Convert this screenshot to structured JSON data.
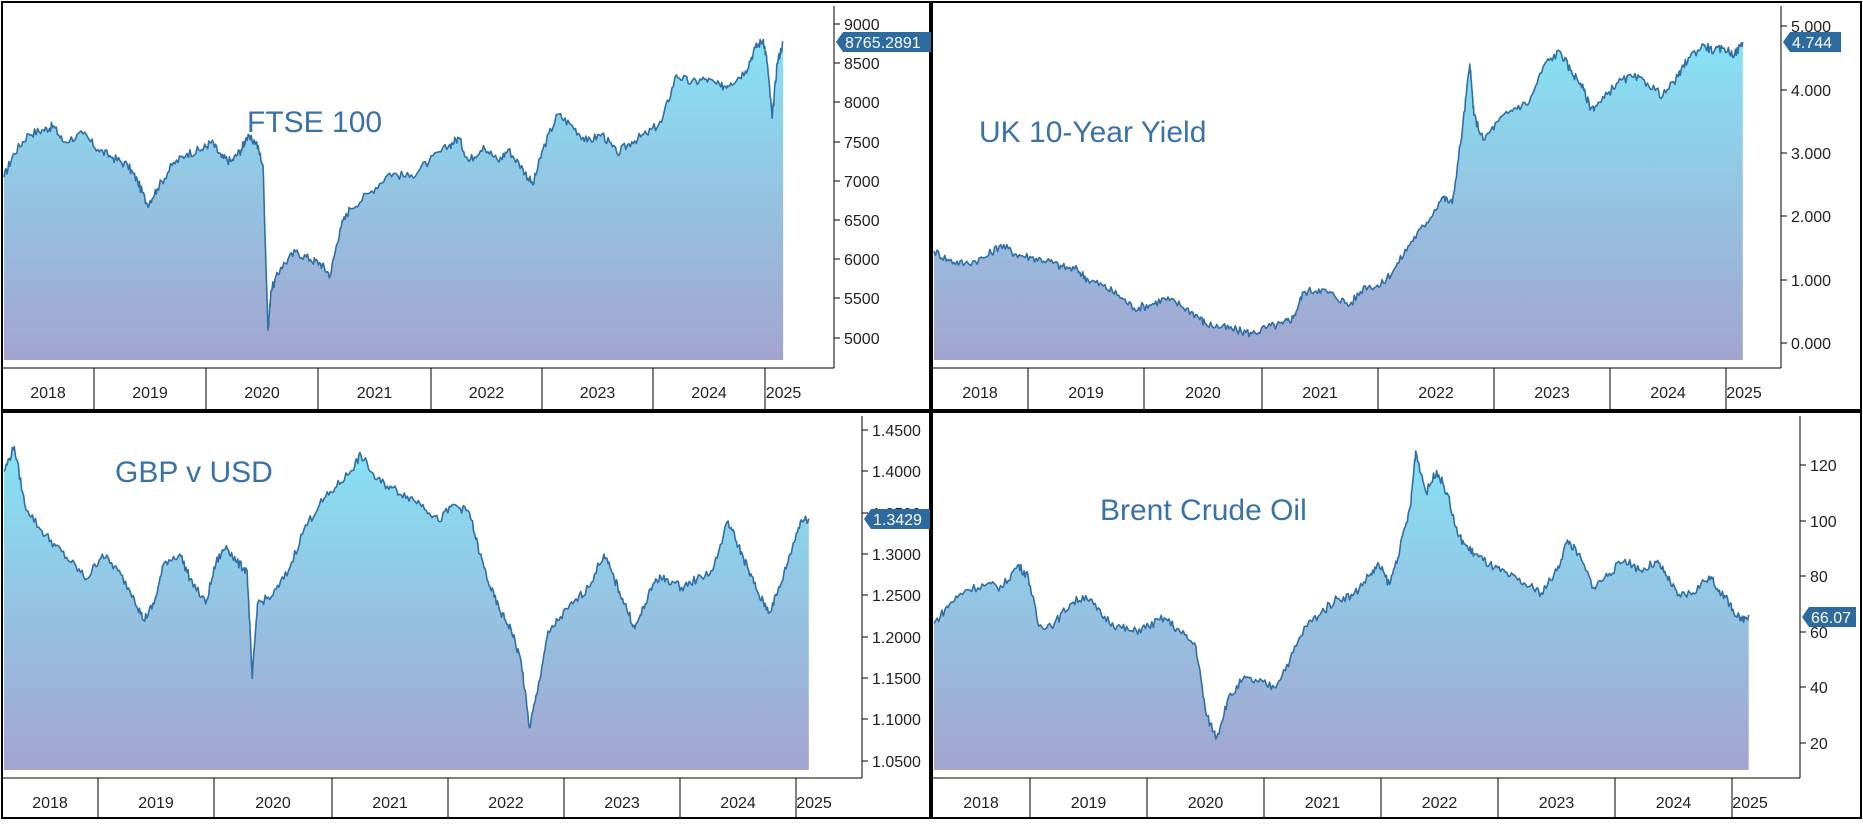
{
  "colors": {
    "line": "#2f6fa6",
    "title": "#3a72a8",
    "fill_top": "#86e2f4",
    "fill_bottom": "#a3a4cf",
    "border": "#000000",
    "badge": "#2c6aa0"
  },
  "chart_data": [
    {
      "type": "area",
      "title": "FTSE 100",
      "x_tick_labels": [
        "2018",
        "2019",
        "2020",
        "2021",
        "2022",
        "2023",
        "2024",
        "2025"
      ],
      "y_tick_labels": [
        "9000",
        "8500",
        "8000",
        "7500",
        "7000",
        "6500",
        "6000",
        "5500",
        "5000"
      ],
      "ylim": [
        4620,
        9220
      ],
      "last_value_label": "8765.2891",
      "series": [
        {
          "values": [
            [
              2017.5,
              7050
            ],
            [
              2017.6,
              7350
            ],
            [
              2017.75,
              7600
            ],
            [
              2017.9,
              7650
            ],
            [
              2018.0,
              7700
            ],
            [
              2018.1,
              7500
            ],
            [
              2018.3,
              7600
            ],
            [
              2018.45,
              7400
            ],
            [
              2018.6,
              7300
            ],
            [
              2018.75,
              7200
            ],
            [
              2018.85,
              7000
            ],
            [
              2018.95,
              6700
            ],
            [
              2019.05,
              6900
            ],
            [
              2019.2,
              7200
            ],
            [
              2019.35,
              7350
            ],
            [
              2019.5,
              7400
            ],
            [
              2019.6,
              7500
            ],
            [
              2019.7,
              7300
            ],
            [
              2019.8,
              7250
            ],
            [
              2019.9,
              7400
            ],
            [
              2019.95,
              7550
            ],
            [
              2020.05,
              7500
            ],
            [
              2020.12,
              7200
            ],
            [
              2020.17,
              5100
            ],
            [
              2020.2,
              5600
            ],
            [
              2020.3,
              5900
            ],
            [
              2020.45,
              6100
            ],
            [
              2020.6,
              6000
            ],
            [
              2020.7,
              5950
            ],
            [
              2020.8,
              5800
            ],
            [
              2020.9,
              6400
            ],
            [
              2021.0,
              6650
            ],
            [
              2021.2,
              6850
            ],
            [
              2021.4,
              7100
            ],
            [
              2021.6,
              7050
            ],
            [
              2021.8,
              7250
            ],
            [
              2022.0,
              7450
            ],
            [
              2022.1,
              7550
            ],
            [
              2022.2,
              7250
            ],
            [
              2022.35,
              7450
            ],
            [
              2022.5,
              7250
            ],
            [
              2022.6,
              7400
            ],
            [
              2022.75,
              7150
            ],
            [
              2022.85,
              6950
            ],
            [
              2022.95,
              7400
            ],
            [
              2023.1,
              7850
            ],
            [
              2023.25,
              7700
            ],
            [
              2023.4,
              7500
            ],
            [
              2023.55,
              7600
            ],
            [
              2023.7,
              7350
            ],
            [
              2023.85,
              7500
            ],
            [
              2024.0,
              7600
            ],
            [
              2024.15,
              7750
            ],
            [
              2024.3,
              8350
            ],
            [
              2024.45,
              8250
            ],
            [
              2024.6,
              8300
            ],
            [
              2024.75,
              8200
            ],
            [
              2024.85,
              8250
            ],
            [
              2025.0,
              8400
            ],
            [
              2025.1,
              8700
            ],
            [
              2025.18,
              8800
            ],
            [
              2025.22,
              8500
            ],
            [
              2025.27,
              7800
            ],
            [
              2025.32,
              8500
            ],
            [
              2025.38,
              8765
            ]
          ]
        }
      ]
    },
    {
      "type": "area",
      "title": "UK 10-Year Yield",
      "x_tick_labels": [
        "2018",
        "2019",
        "2020",
        "2021",
        "2022",
        "2023",
        "2024",
        "2025"
      ],
      "y_tick_labels": [
        "5.000",
        "4.000",
        "3.000",
        "2.000",
        "1.000",
        "0.000"
      ],
      "ylim": [
        -0.45,
        5.05
      ],
      "last_value_label": "4.744",
      "series": [
        {
          "values": [
            [
              2017.5,
              1.45
            ],
            [
              2017.65,
              1.3
            ],
            [
              2017.8,
              1.25
            ],
            [
              2018.0,
              1.35
            ],
            [
              2018.15,
              1.55
            ],
            [
              2018.3,
              1.4
            ],
            [
              2018.45,
              1.35
            ],
            [
              2018.6,
              1.3
            ],
            [
              2018.75,
              1.2
            ],
            [
              2018.9,
              1.15
            ],
            [
              2019.0,
              1.0
            ],
            [
              2019.15,
              0.9
            ],
            [
              2019.3,
              0.75
            ],
            [
              2019.45,
              0.55
            ],
            [
              2019.6,
              0.6
            ],
            [
              2019.75,
              0.7
            ],
            [
              2019.9,
              0.6
            ],
            [
              2020.05,
              0.45
            ],
            [
              2020.15,
              0.3
            ],
            [
              2020.3,
              0.25
            ],
            [
              2020.45,
              0.2
            ],
            [
              2020.6,
              0.15
            ],
            [
              2020.75,
              0.25
            ],
            [
              2020.9,
              0.3
            ],
            [
              2021.0,
              0.4
            ],
            [
              2021.1,
              0.8
            ],
            [
              2021.25,
              0.85
            ],
            [
              2021.4,
              0.75
            ],
            [
              2021.55,
              0.6
            ],
            [
              2021.7,
              0.9
            ],
            [
              2021.85,
              0.9
            ],
            [
              2022.0,
              1.2
            ],
            [
              2022.15,
              1.6
            ],
            [
              2022.3,
              1.9
            ],
            [
              2022.45,
              2.3
            ],
            [
              2022.55,
              2.2
            ],
            [
              2022.65,
              3.4
            ],
            [
              2022.72,
              4.4
            ],
            [
              2022.76,
              3.6
            ],
            [
              2022.85,
              3.2
            ],
            [
              2023.0,
              3.5
            ],
            [
              2023.15,
              3.7
            ],
            [
              2023.3,
              3.8
            ],
            [
              2023.45,
              4.4
            ],
            [
              2023.6,
              4.6
            ],
            [
              2023.7,
              4.3
            ],
            [
              2023.8,
              4.1
            ],
            [
              2023.9,
              3.7
            ],
            [
              2024.0,
              3.8
            ],
            [
              2024.15,
              4.1
            ],
            [
              2024.3,
              4.2
            ],
            [
              2024.45,
              4.1
            ],
            [
              2024.6,
              3.9
            ],
            [
              2024.75,
              4.2
            ],
            [
              2024.85,
              4.5
            ],
            [
              2025.0,
              4.7
            ],
            [
              2025.1,
              4.6
            ],
            [
              2025.2,
              4.65
            ],
            [
              2025.3,
              4.55
            ],
            [
              2025.38,
              4.744
            ]
          ]
        }
      ]
    },
    {
      "type": "area",
      "title": "GBP v USD",
      "x_tick_labels": [
        "2018",
        "2019",
        "2020",
        "2021",
        "2022",
        "2023",
        "2024",
        "2025"
      ],
      "y_tick_labels": [
        "1.4500",
        "1.4000",
        "1.3500",
        "1.3000",
        "1.2500",
        "1.2000",
        "1.1500",
        "1.1000",
        "1.0500"
      ],
      "ylim": [
        1.035,
        1.465
      ],
      "last_value_label": "1.3429",
      "series": [
        {
          "values": [
            [
              2017.6,
              1.4
            ],
            [
              2017.7,
              1.43
            ],
            [
              2017.8,
              1.36
            ],
            [
              2017.95,
              1.33
            ],
            [
              2018.1,
              1.31
            ],
            [
              2018.25,
              1.29
            ],
            [
              2018.4,
              1.27
            ],
            [
              2018.55,
              1.3
            ],
            [
              2018.7,
              1.28
            ],
            [
              2018.85,
              1.25
            ],
            [
              2018.95,
              1.22
            ],
            [
              2019.05,
              1.24
            ],
            [
              2019.15,
              1.29
            ],
            [
              2019.3,
              1.3
            ],
            [
              2019.4,
              1.27
            ],
            [
              2019.55,
              1.24
            ],
            [
              2019.65,
              1.29
            ],
            [
              2019.75,
              1.31
            ],
            [
              2019.85,
              1.29
            ],
            [
              2019.95,
              1.28
            ],
            [
              2020.0,
              1.15
            ],
            [
              2020.05,
              1.24
            ],
            [
              2020.2,
              1.25
            ],
            [
              2020.35,
              1.28
            ],
            [
              2020.5,
              1.33
            ],
            [
              2020.65,
              1.36
            ],
            [
              2020.8,
              1.38
            ],
            [
              2020.95,
              1.4
            ],
            [
              2021.05,
              1.42
            ],
            [
              2021.2,
              1.39
            ],
            [
              2021.35,
              1.38
            ],
            [
              2021.5,
              1.37
            ],
            [
              2021.65,
              1.36
            ],
            [
              2021.8,
              1.34
            ],
            [
              2021.95,
              1.36
            ],
            [
              2022.1,
              1.35
            ],
            [
              2022.2,
              1.3
            ],
            [
              2022.3,
              1.26
            ],
            [
              2022.4,
              1.23
            ],
            [
              2022.5,
              1.21
            ],
            [
              2022.6,
              1.17
            ],
            [
              2022.68,
              1.09
            ],
            [
              2022.75,
              1.13
            ],
            [
              2022.85,
              1.2
            ],
            [
              2022.95,
              1.22
            ],
            [
              2023.1,
              1.24
            ],
            [
              2023.25,
              1.26
            ],
            [
              2023.4,
              1.3
            ],
            [
              2023.5,
              1.27
            ],
            [
              2023.6,
              1.24
            ],
            [
              2023.7,
              1.21
            ],
            [
              2023.8,
              1.24
            ],
            [
              2023.9,
              1.27
            ],
            [
              2024.0,
              1.27
            ],
            [
              2024.15,
              1.26
            ],
            [
              2024.3,
              1.27
            ],
            [
              2024.45,
              1.28
            ],
            [
              2024.6,
              1.34
            ],
            [
              2024.7,
              1.31
            ],
            [
              2024.8,
              1.28
            ],
            [
              2024.9,
              1.25
            ],
            [
              2025.0,
              1.23
            ],
            [
              2025.1,
              1.26
            ],
            [
              2025.2,
              1.3
            ],
            [
              2025.3,
              1.34
            ],
            [
              2025.38,
              1.3429
            ]
          ]
        }
      ]
    },
    {
      "type": "area",
      "title": "Brent Crude Oil",
      "x_tick_labels": [
        "2018",
        "2019",
        "2020",
        "2021",
        "2022",
        "2023",
        "2024",
        "2025"
      ],
      "y_tick_labels": [
        "120",
        "100",
        "80",
        "60",
        "40",
        "20"
      ],
      "ylim": [
        8,
        136
      ],
      "last_value_label": "66.07",
      "series": [
        {
          "values": [
            [
              2017.6,
              63
            ],
            [
              2017.75,
              70
            ],
            [
              2017.9,
              75
            ],
            [
              2018.1,
              77
            ],
            [
              2018.25,
              76
            ],
            [
              2018.4,
              84
            ],
            [
              2018.5,
              80
            ],
            [
              2018.6,
              62
            ],
            [
              2018.75,
              63
            ],
            [
              2018.9,
              70
            ],
            [
              2019.05,
              73
            ],
            [
              2019.2,
              66
            ],
            [
              2019.35,
              62
            ],
            [
              2019.5,
              60
            ],
            [
              2019.65,
              62
            ],
            [
              2019.8,
              65
            ],
            [
              2019.95,
              60
            ],
            [
              2020.1,
              55
            ],
            [
              2020.2,
              30
            ],
            [
              2020.3,
              22
            ],
            [
              2020.4,
              35
            ],
            [
              2020.55,
              43
            ],
            [
              2020.7,
              42
            ],
            [
              2020.85,
              40
            ],
            [
              2021.0,
              50
            ],
            [
              2021.15,
              62
            ],
            [
              2021.3,
              67
            ],
            [
              2021.45,
              72
            ],
            [
              2021.6,
              73
            ],
            [
              2021.75,
              80
            ],
            [
              2021.85,
              84
            ],
            [
              2021.95,
              77
            ],
            [
              2022.05,
              90
            ],
            [
              2022.15,
              105
            ],
            [
              2022.2,
              125
            ],
            [
              2022.3,
              110
            ],
            [
              2022.4,
              118
            ],
            [
              2022.5,
              110
            ],
            [
              2022.6,
              95
            ],
            [
              2022.7,
              90
            ],
            [
              2022.8,
              87
            ],
            [
              2022.95,
              83
            ],
            [
              2023.1,
              80
            ],
            [
              2023.25,
              77
            ],
            [
              2023.4,
              74
            ],
            [
              2023.55,
              82
            ],
            [
              2023.65,
              93
            ],
            [
              2023.75,
              88
            ],
            [
              2023.9,
              76
            ],
            [
              2024.05,
              81
            ],
            [
              2024.2,
              86
            ],
            [
              2024.35,
              82
            ],
            [
              2024.5,
              85
            ],
            [
              2024.6,
              80
            ],
            [
              2024.7,
              73
            ],
            [
              2024.85,
              74
            ],
            [
              2025.0,
              80
            ],
            [
              2025.1,
              75
            ],
            [
              2025.2,
              70
            ],
            [
              2025.3,
              64
            ],
            [
              2025.38,
              66.07
            ]
          ]
        }
      ]
    }
  ]
}
